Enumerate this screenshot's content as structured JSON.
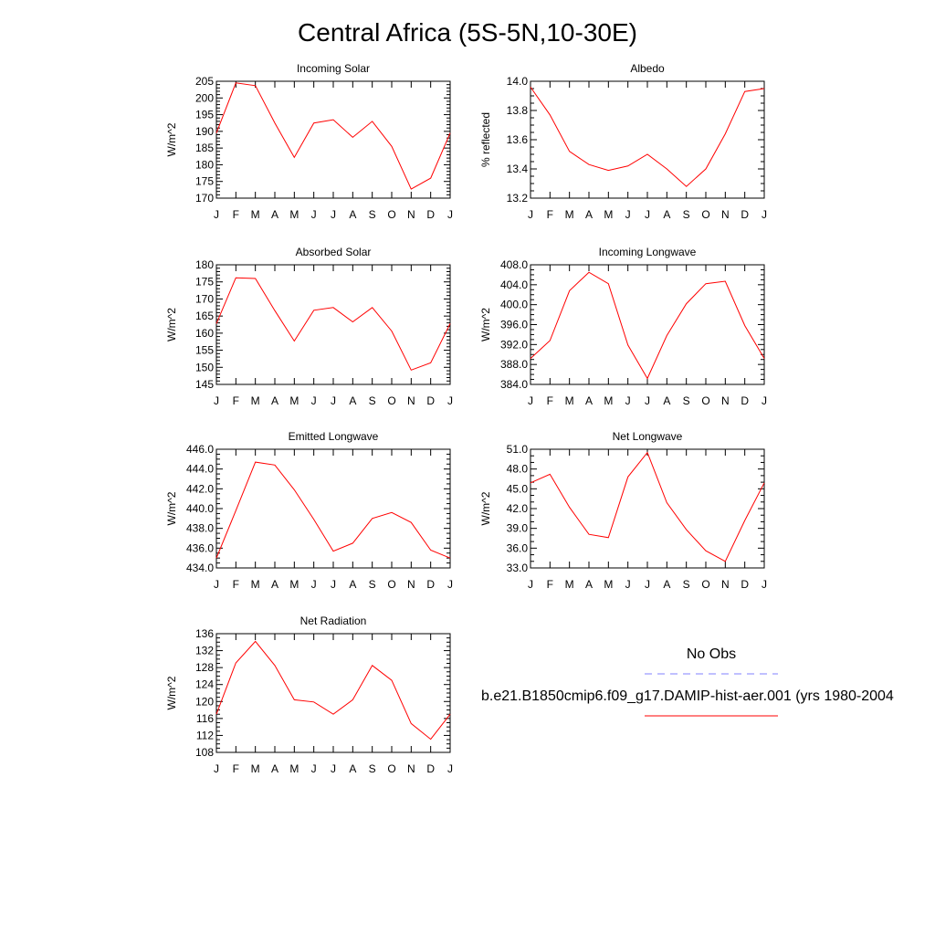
{
  "title": "Central Africa (5S-5N,10-30E)",
  "legend": {
    "obs_label": "No Obs",
    "model_label": "b.e21.B1850cmip6.f09_g17.DAMIP-hist-aer.001 (yrs 1980-2004",
    "obs_color": "#8080ff",
    "model_color": "#ff0000"
  },
  "months": [
    "J",
    "F",
    "M",
    "A",
    "M",
    "J",
    "J",
    "A",
    "S",
    "O",
    "N",
    "D",
    "J"
  ],
  "chart_data": [
    {
      "type": "line",
      "title": "Incoming Solar",
      "ylabel": "W/m^2",
      "ylim": [
        170,
        205
      ],
      "yticks": [
        "170",
        "175",
        "180",
        "185",
        "190",
        "195",
        "200",
        "205"
      ],
      "yminor": 5,
      "series": [
        {
          "values": [
            189.5,
            204.5,
            203.7,
            192.5,
            182.2,
            192.5,
            193.5,
            188.2,
            193.0,
            185.5,
            172.7,
            176.0,
            189.5
          ]
        }
      ]
    },
    {
      "type": "line",
      "title": "Albedo",
      "ylabel": "% reflected",
      "ylim": [
        13.2,
        14.0
      ],
      "yticks": [
        "13.2",
        "13.4",
        "13.6",
        "13.8",
        "14.0"
      ],
      "yminor": 4,
      "series": [
        {
          "values": [
            13.96,
            13.77,
            13.52,
            13.43,
            13.39,
            13.42,
            13.5,
            13.4,
            13.28,
            13.4,
            13.64,
            13.93,
            13.95
          ]
        }
      ]
    },
    {
      "type": "line",
      "title": "Absorbed Solar",
      "ylabel": "W/m^2",
      "ylim": [
        145,
        180
      ],
      "yticks": [
        "145",
        "150",
        "155",
        "160",
        "165",
        "170",
        "175",
        "180"
      ],
      "yminor": 5,
      "series": [
        {
          "values": [
            162.8,
            176.2,
            176.0,
            166.6,
            157.7,
            166.7,
            167.5,
            163.3,
            167.5,
            160.6,
            149.2,
            151.3,
            162.8
          ]
        }
      ]
    },
    {
      "type": "line",
      "title": "Incoming Longwave",
      "ylabel": "W/m^2",
      "ylim": [
        384.0,
        408.0
      ],
      "yticks": [
        "384.0",
        "388.0",
        "392.0",
        "396.0",
        "400.0",
        "404.0",
        "408.0"
      ],
      "yminor": 4,
      "series": [
        {
          "values": [
            389.2,
            392.8,
            402.8,
            406.5,
            404.2,
            391.9,
            385.2,
            393.8,
            400.2,
            404.2,
            404.7,
            395.8,
            389.2
          ]
        }
      ]
    },
    {
      "type": "line",
      "title": "Emitted Longwave",
      "ylabel": "W/m^2",
      "ylim": [
        434.0,
        446.0
      ],
      "yticks": [
        "434.0",
        "436.0",
        "438.0",
        "440.0",
        "442.0",
        "444.0",
        "446.0"
      ],
      "yminor": 4,
      "series": [
        {
          "values": [
            435.0,
            439.8,
            444.7,
            444.4,
            441.9,
            438.9,
            435.7,
            436.5,
            439.0,
            439.6,
            438.6,
            435.8,
            435.0
          ]
        }
      ]
    },
    {
      "type": "line",
      "title": "Net Longwave",
      "ylabel": "W/m^2",
      "ylim": [
        33.0,
        51.0
      ],
      "yticks": [
        "33.0",
        "36.0",
        "39.0",
        "42.0",
        "45.0",
        "48.0",
        "51.0"
      ],
      "yminor": 3,
      "series": [
        {
          "values": [
            45.9,
            47.2,
            42.2,
            38.1,
            37.6,
            46.8,
            50.5,
            42.9,
            38.8,
            35.6,
            34.0,
            40.2,
            45.9
          ]
        }
      ]
    },
    {
      "type": "line",
      "title": "Net Radiation",
      "ylabel": "W/m^2",
      "ylim": [
        108,
        136
      ],
      "yticks": [
        "108",
        "112",
        "116",
        "120",
        "124",
        "128",
        "132",
        "136"
      ],
      "yminor": 4,
      "series": [
        {
          "values": [
            117.0,
            129.1,
            134.2,
            128.5,
            120.4,
            119.9,
            117.0,
            120.4,
            128.5,
            125.0,
            114.8,
            111.1,
            117.0
          ]
        }
      ]
    }
  ]
}
